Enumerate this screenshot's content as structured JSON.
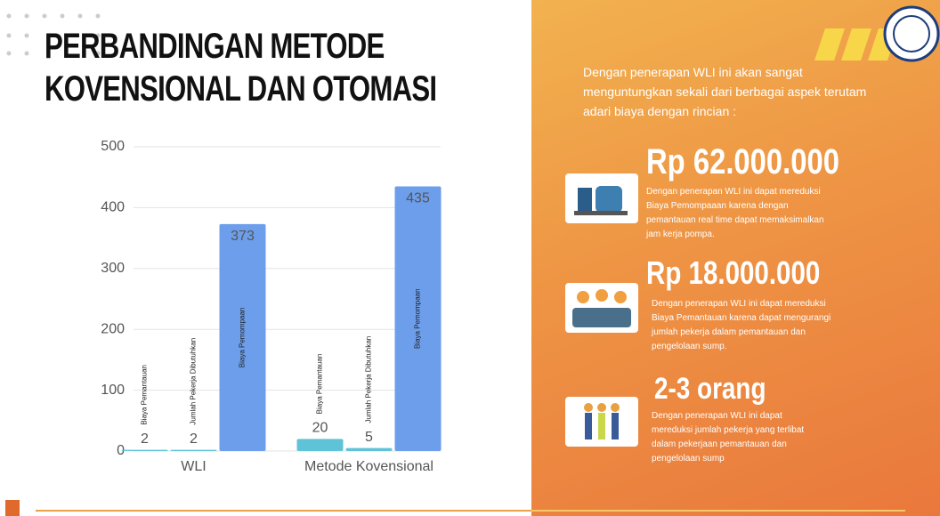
{
  "chart_data": {
    "type": "bar",
    "categories": [
      "WLI",
      "Metode Kovensional"
    ],
    "series": [
      {
        "name": "Biaya Pemantauan",
        "color": "#5ec3d6",
        "values": [
          2,
          20
        ]
      },
      {
        "name": "Jumlah Pekerja Dibutuhkan",
        "color": "#5ec3d6",
        "values": [
          2,
          5
        ]
      },
      {
        "name": "Biaya Pemompaan",
        "color": "#6d9eeb",
        "values": [
          373,
          435
        ]
      }
    ],
    "ylim": [
      0,
      500
    ],
    "yticks": [
      0,
      100,
      200,
      300,
      400,
      500
    ],
    "grid": true
  },
  "slide": {
    "title": [
      "PERBANDINGAN METODE",
      "KOVENSIONAL DAN OTOMASI"
    ],
    "intro": "Dengan penerapan WLI ini akan sangat menguntungkan sekali dari berbagai aspek terutam adari biaya dengan rincian :",
    "highlights": [
      {
        "figure": "Rp 62.000.000",
        "text": "Dengan penerapan WLI ini dapat mereduksi Biaya Pemompaaan karena dengan pemantauan real time dapat memaksimalkan jam kerja pompa."
      },
      {
        "figure": "Rp 18.000.000",
        "text": "Dengan penerapan WLI ini dapat mereduksi Biaya Pemantauan karena dapat mengurangi jumlah pekerja dalam pemantauan dan pengelolaan sump."
      },
      {
        "figure": "2-3 orang",
        "text": "Dengan penerapan WLI ini dapat mereduksi jumlah pekerja yang terlibat dalam pekerjaan pemantauan dan pengelolaan sump"
      }
    ]
  }
}
